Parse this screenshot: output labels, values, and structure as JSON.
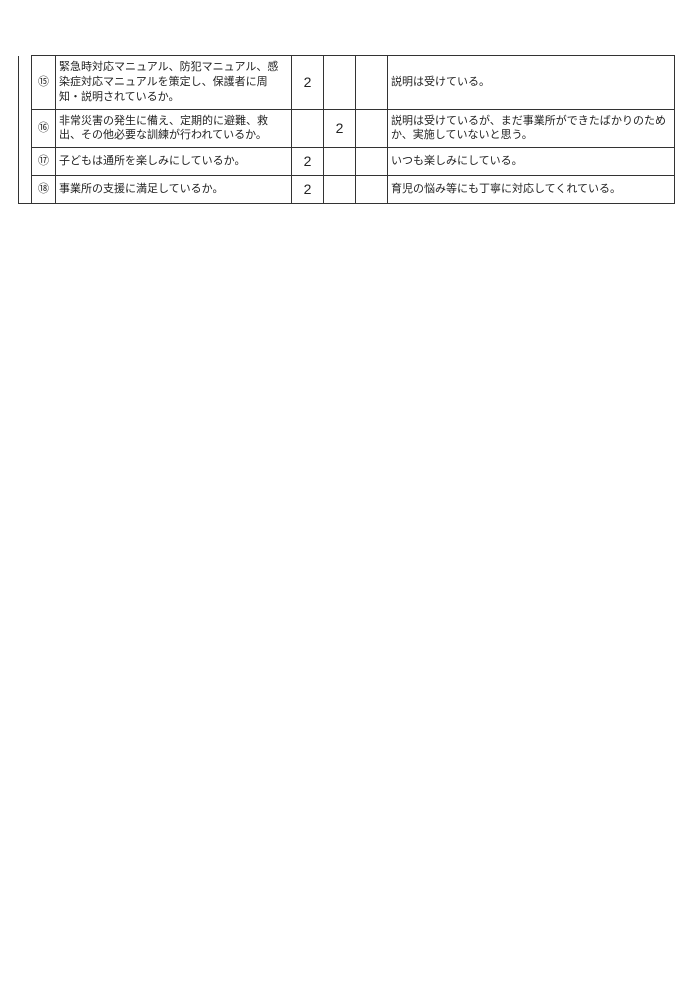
{
  "table": {
    "border_color": "#333333",
    "text_color": "#222222",
    "font_size_body": 11,
    "font_size_value": 14,
    "rows": [
      {
        "num": "⑮",
        "question": "緊急時対応マニュアル、防犯マニュアル、感染症対応マニュアルを策定し、保護者に周知・説明されているか。",
        "v1": "2",
        "v2": "",
        "v3": "",
        "comment": "説明は受けている。"
      },
      {
        "num": "⑯",
        "question": "非常災害の発生に備え、定期的に避難、救出、その他必要な訓練が行われているか。",
        "v1": "",
        "v2": "2",
        "v3": "",
        "comment": "説明は受けているが、まだ事業所ができたばかりのためか、実施していないと思う。"
      },
      {
        "num": "⑰",
        "question": "子どもは通所を楽しみにしているか。",
        "v1": "2",
        "v2": "",
        "v3": "",
        "comment": "いつも楽しみにしている。"
      },
      {
        "num": "⑱",
        "question": "事業所の支援に満足しているか。",
        "v1": "2",
        "v2": "",
        "v3": "",
        "comment": "育児の悩み等にも丁寧に対応してくれている。"
      }
    ]
  }
}
